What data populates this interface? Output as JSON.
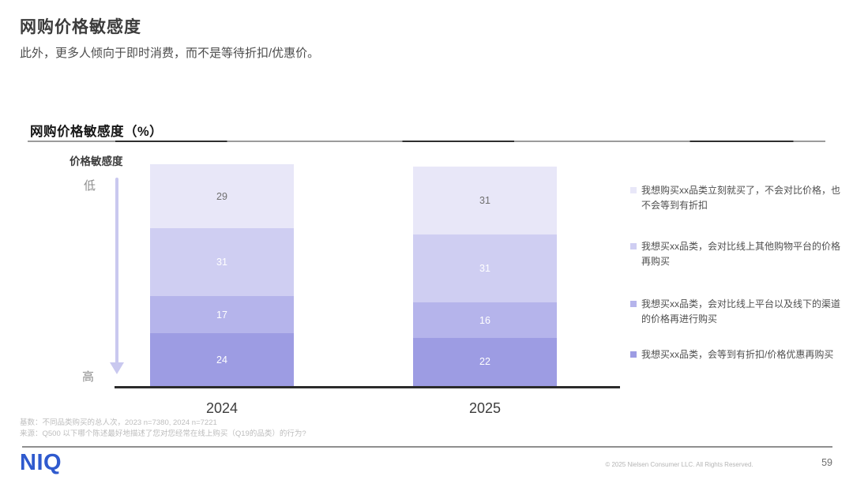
{
  "header": {
    "title": "网购价格敏感度",
    "subtitle": "此外，更多人倾向于即时消费，而不是等待折扣/优惠价。"
  },
  "chart": {
    "section_title": "网购价格敏感度（%）",
    "axis_label": "价格敏感度",
    "axis_low": "低",
    "axis_high": "高"
  },
  "chart_data": {
    "type": "bar",
    "stacked": true,
    "orientation": "vertical",
    "title": "网购价格敏感度（%）",
    "categories": [
      "2024",
      "2025"
    ],
    "series": [
      {
        "name": "我想购买xx品类立刻就买了，不会对比价格，也不会等到有折扣",
        "values": [
          29,
          31
        ],
        "color": "#e8e7f8",
        "value_text_color": "#6f6f6f"
      },
      {
        "name": "我想买xx品类，会对比线上其他购物平台的价格再购买",
        "values": [
          31,
          31
        ],
        "color": "#cfcef2",
        "value_text_color": "#ffffff"
      },
      {
        "name": "我想买xx品类，会对比线上平台以及线下的渠道的价格再进行购买",
        "values": [
          17,
          16
        ],
        "color": "#b5b4eb",
        "value_text_color": "#ffffff"
      },
      {
        "name": "我想买xx品类，会等到有折扣/价格优惠再购买",
        "values": [
          24,
          22
        ],
        "color": "#9d9ce3",
        "value_text_color": "#ffffff"
      }
    ],
    "legend_position": "right",
    "grid": false,
    "axis_annotation": {
      "label": "价格敏感度",
      "top": "低",
      "bottom": "高"
    }
  },
  "footnotes": {
    "line1": "基数：不同品类购买的总人次，2023 n=7380, 2024 n=7221",
    "line2": "来源：Q500 以下哪个陈述最好地描述了您对您经常在线上购买（Q19的品类）的行为?"
  },
  "footer": {
    "logo": "NIQ",
    "copyright": "© 2025 Nielsen Consumer LLC. All Rights Reserved.",
    "page_number": "59"
  }
}
